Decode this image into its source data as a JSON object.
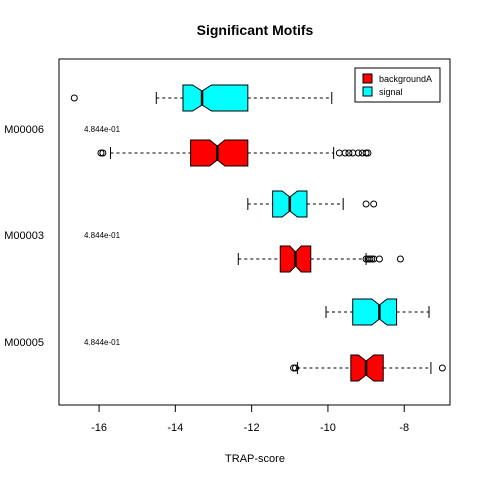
{
  "chart_data": {
    "type": "boxplot",
    "title": "Significant Motifs",
    "xlabel": "TRAP-score",
    "ylabel": "",
    "xlim": [
      -17.05,
      -6.8
    ],
    "xticks": [
      -16,
      -14,
      -12,
      -10,
      -8
    ],
    "xtick_labels": [
      "-16",
      "-14",
      "-12",
      "-10",
      "-8"
    ],
    "groups": [
      {
        "label": "M00006",
        "annotation": "4.844e-01"
      },
      {
        "label": "M00003",
        "annotation": "4.844e-01"
      },
      {
        "label": "M00005",
        "annotation": "4.844e-01"
      }
    ],
    "series": [
      {
        "name": "backgroundA",
        "color": "#ff0000"
      },
      {
        "name": "signal",
        "color": "#00ffff"
      }
    ],
    "legend_position": "top-right",
    "boxes": [
      {
        "group": 0,
        "series": 1,
        "whisker_low": -14.5,
        "q1": -13.8,
        "median": -13.3,
        "q3": -12.1,
        "whisker_high": -9.9,
        "notch_low": -13.55,
        "notch_high": -13.05,
        "outliers": [
          -16.65
        ]
      },
      {
        "group": 0,
        "series": 0,
        "whisker_low": -15.7,
        "q1": -13.6,
        "median": -12.9,
        "q3": -12.1,
        "whisker_high": -9.85,
        "notch_low": -13.1,
        "notch_high": -12.7,
        "outliers": [
          -15.95,
          -15.9,
          -9.7,
          -9.55,
          -9.45,
          -9.35,
          -9.2,
          -9.1,
          -9.0,
          -8.95
        ]
      },
      {
        "group": 1,
        "series": 1,
        "whisker_low": -12.1,
        "q1": -11.45,
        "median": -11.0,
        "q3": -10.55,
        "whisker_high": -9.6,
        "notch_low": -11.2,
        "notch_high": -10.8,
        "outliers": [
          -9.0,
          -8.8
        ]
      },
      {
        "group": 1,
        "series": 0,
        "whisker_low": -12.35,
        "q1": -11.25,
        "median": -10.85,
        "q3": -10.45,
        "whisker_high": -9.0,
        "notch_low": -11.0,
        "notch_high": -10.7,
        "outliers": [
          -9.0,
          -8.95,
          -8.9,
          -8.85,
          -8.8,
          -8.65,
          -8.1
        ]
      },
      {
        "group": 2,
        "series": 1,
        "whisker_low": -10.05,
        "q1": -9.35,
        "median": -8.65,
        "q3": -8.2,
        "whisker_high": -7.35,
        "notch_low": -8.85,
        "notch_high": -8.45,
        "outliers": []
      },
      {
        "group": 2,
        "series": 0,
        "whisker_low": -10.8,
        "q1": -9.4,
        "median": -9.0,
        "q3": -8.55,
        "whisker_high": -7.3,
        "notch_low": -9.2,
        "notch_high": -8.8,
        "outliers": [
          -10.9,
          -10.85,
          -7.0
        ]
      }
    ]
  }
}
